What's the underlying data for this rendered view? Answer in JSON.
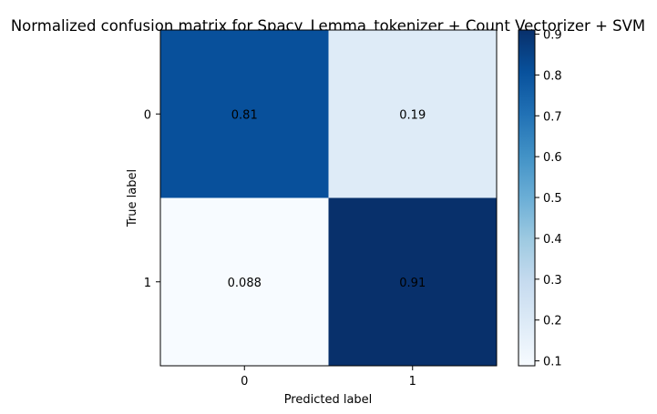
{
  "chart_data": {
    "type": "heatmap",
    "title": "Normalized confusion matrix for Spacy_Lemma_tokenizer + Count Vectorizer + SVM",
    "xlabel": "Predicted label",
    "ylabel": "True label",
    "x_categories": [
      "0",
      "1"
    ],
    "y_categories": [
      "0",
      "1"
    ],
    "values": [
      [
        0.81,
        0.19
      ],
      [
        0.088,
        0.91
      ]
    ],
    "value_labels": [
      [
        "0.81",
        "0.19"
      ],
      [
        "0.088",
        "0.91"
      ]
    ],
    "colorbar": {
      "min": 0.088,
      "max": 0.91,
      "ticks": [
        "0.1",
        "0.2",
        "0.3",
        "0.4",
        "0.5",
        "0.6",
        "0.7",
        "0.8",
        "0.9"
      ],
      "colormap": "Blues"
    },
    "grid": false
  }
}
